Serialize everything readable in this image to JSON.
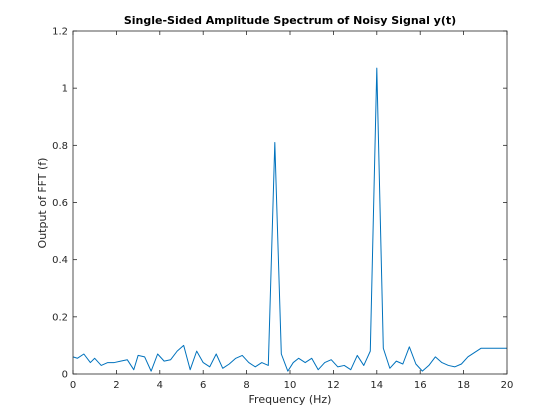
{
  "chart_data": {
    "type": "line",
    "title": "Single-Sided Amplitude Spectrum of Noisy Signal y(t)",
    "xlabel": "Frequency (Hz)",
    "ylabel": "Output of FFT (f)",
    "xlim": [
      0,
      20
    ],
    "ylim": [
      0,
      1.2
    ],
    "xticks": [
      0,
      2,
      4,
      6,
      8,
      10,
      12,
      14,
      16,
      18,
      20
    ],
    "yticks": [
      0,
      0.2,
      0.4,
      0.6,
      0.8,
      1,
      1.2
    ],
    "xtick_labels": [
      "0",
      "2",
      "4",
      "6",
      "8",
      "10",
      "12",
      "14",
      "16",
      "18",
      "20"
    ],
    "ytick_labels": [
      "0",
      "0.2",
      "0.4",
      "0.6",
      "0.8",
      "1",
      "1.2"
    ],
    "grid": false,
    "series_color": "#0072BD",
    "series": [
      {
        "x": [
          0,
          0.2,
          0.5,
          0.8,
          1.0,
          1.3,
          1.6,
          1.9,
          2.2,
          2.5,
          2.8,
          3.0,
          3.3,
          3.6,
          3.9,
          4.2,
          4.5,
          4.8,
          5.1,
          5.4,
          5.7,
          6.0,
          6.3,
          6.6,
          6.9,
          7.2,
          7.5,
          7.8,
          8.1,
          8.4,
          8.7,
          9.0,
          9.3,
          9.6,
          9.9,
          10.15,
          10.4,
          10.7,
          11.0,
          11.3,
          11.6,
          11.9,
          12.2,
          12.5,
          12.8,
          13.1,
          13.4,
          13.7,
          14.0,
          14.3,
          14.6,
          14.9,
          15.2,
          15.5,
          15.8,
          16.1,
          16.4,
          16.7,
          17.0,
          17.3,
          17.6,
          17.9,
          18.2,
          18.5,
          18.8,
          19.1,
          19.4,
          19.7,
          20.0
        ],
        "y": [
          0.06,
          0.055,
          0.07,
          0.04,
          0.055,
          0.03,
          0.04,
          0.04,
          0.045,
          0.05,
          0.015,
          0.065,
          0.06,
          0.01,
          0.07,
          0.045,
          0.05,
          0.08,
          0.1,
          0.015,
          0.08,
          0.04,
          0.025,
          0.07,
          0.02,
          0.035,
          0.055,
          0.065,
          0.04,
          0.025,
          0.04,
          0.03,
          0.81,
          0.07,
          0.01,
          0.04,
          0.055,
          0.04,
          0.055,
          0.015,
          0.04,
          0.05,
          0.025,
          0.03,
          0.015,
          0.065,
          0.03,
          0.08,
          1.07,
          0.09,
          0.02,
          0.045,
          0.035,
          0.095,
          0.035,
          0.01,
          0.03,
          0.06,
          0.04,
          0.03,
          0.025,
          0.035,
          0.06,
          0.075,
          0.09,
          0.09,
          0.09,
          0.09,
          0.09
        ]
      }
    ]
  }
}
